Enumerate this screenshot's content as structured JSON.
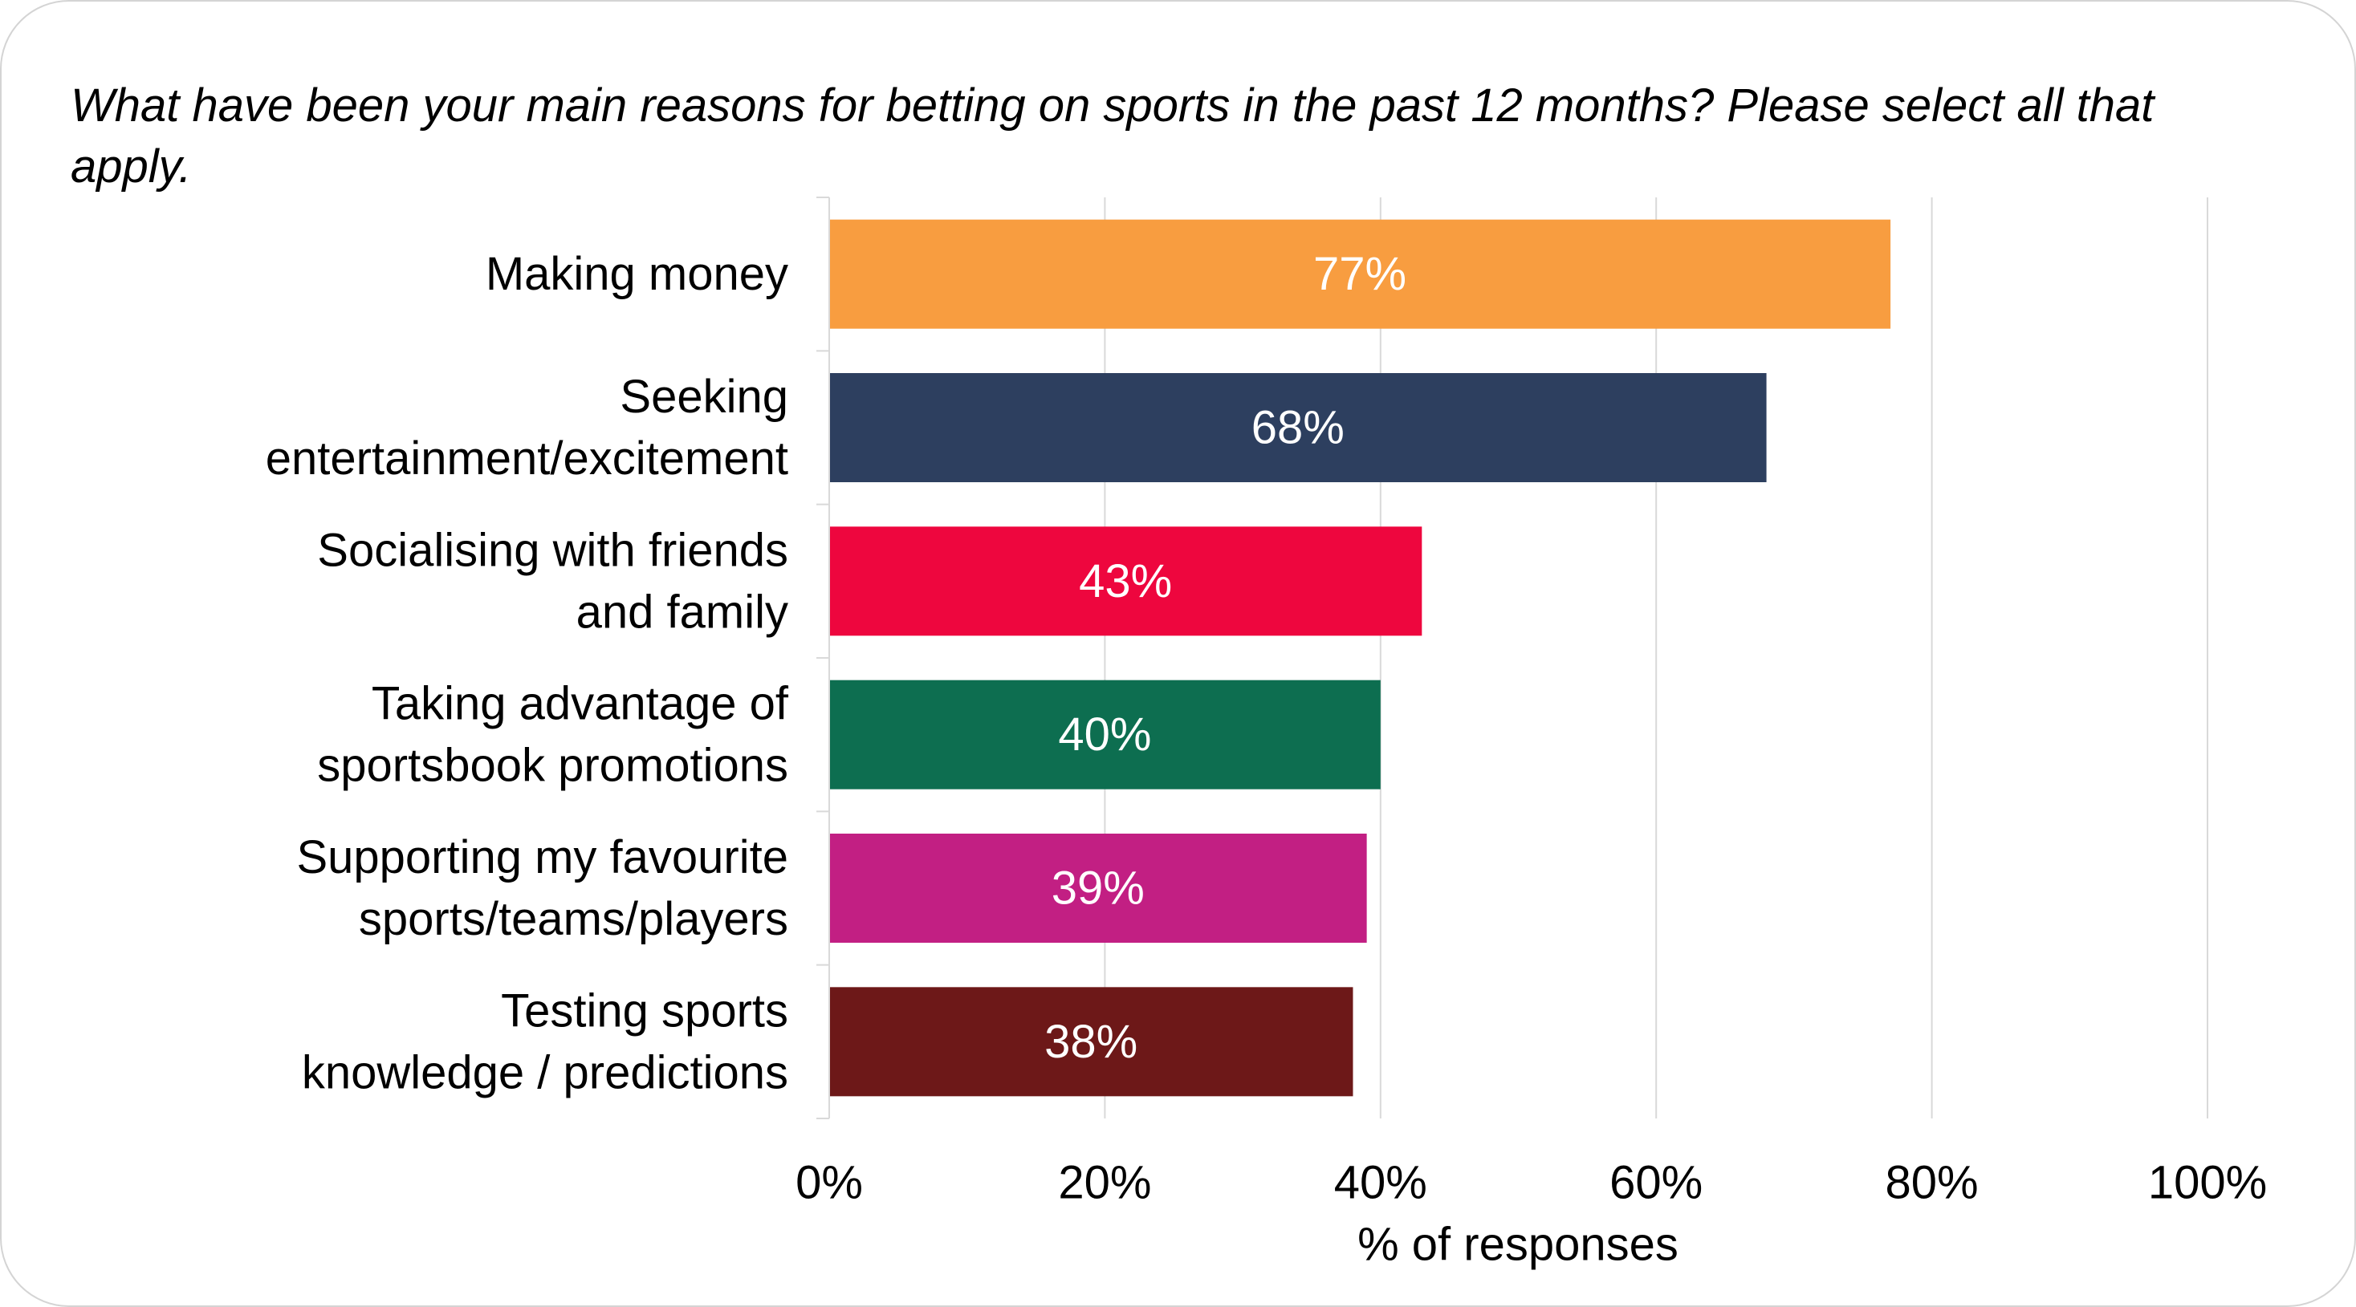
{
  "chart_data": {
    "type": "bar",
    "orientation": "horizontal",
    "title": "What have been your main reasons for betting on sports in the past 12 months? Please select all that apply.",
    "xlabel": "% of responses",
    "ylabel": "",
    "xlim": [
      0,
      100
    ],
    "ticks": [
      0,
      20,
      40,
      60,
      80,
      100
    ],
    "tick_labels": [
      "0%",
      "20%",
      "40%",
      "60%",
      "80%",
      "100%"
    ],
    "grid": true,
    "legend": "none",
    "categories": [
      [
        "Making money"
      ],
      [
        "Seeking",
        "entertainment/excitement"
      ],
      [
        "Socialising with friends",
        "and family"
      ],
      [
        "Taking advantage of",
        "sportsbook promotions"
      ],
      [
        "Supporting my favourite",
        "sports/teams/players"
      ],
      [
        "Testing sports",
        "knowledge / predictions"
      ]
    ],
    "values": [
      77,
      68,
      43,
      40,
      39,
      38
    ],
    "data_labels": [
      "77%",
      "68%",
      "43%",
      "40%",
      "39%",
      "38%"
    ],
    "colors": [
      "#F89D40",
      "#2D3F5F",
      "#EE063E",
      "#0D6E50",
      "#C21F83",
      "#6D1818"
    ]
  }
}
